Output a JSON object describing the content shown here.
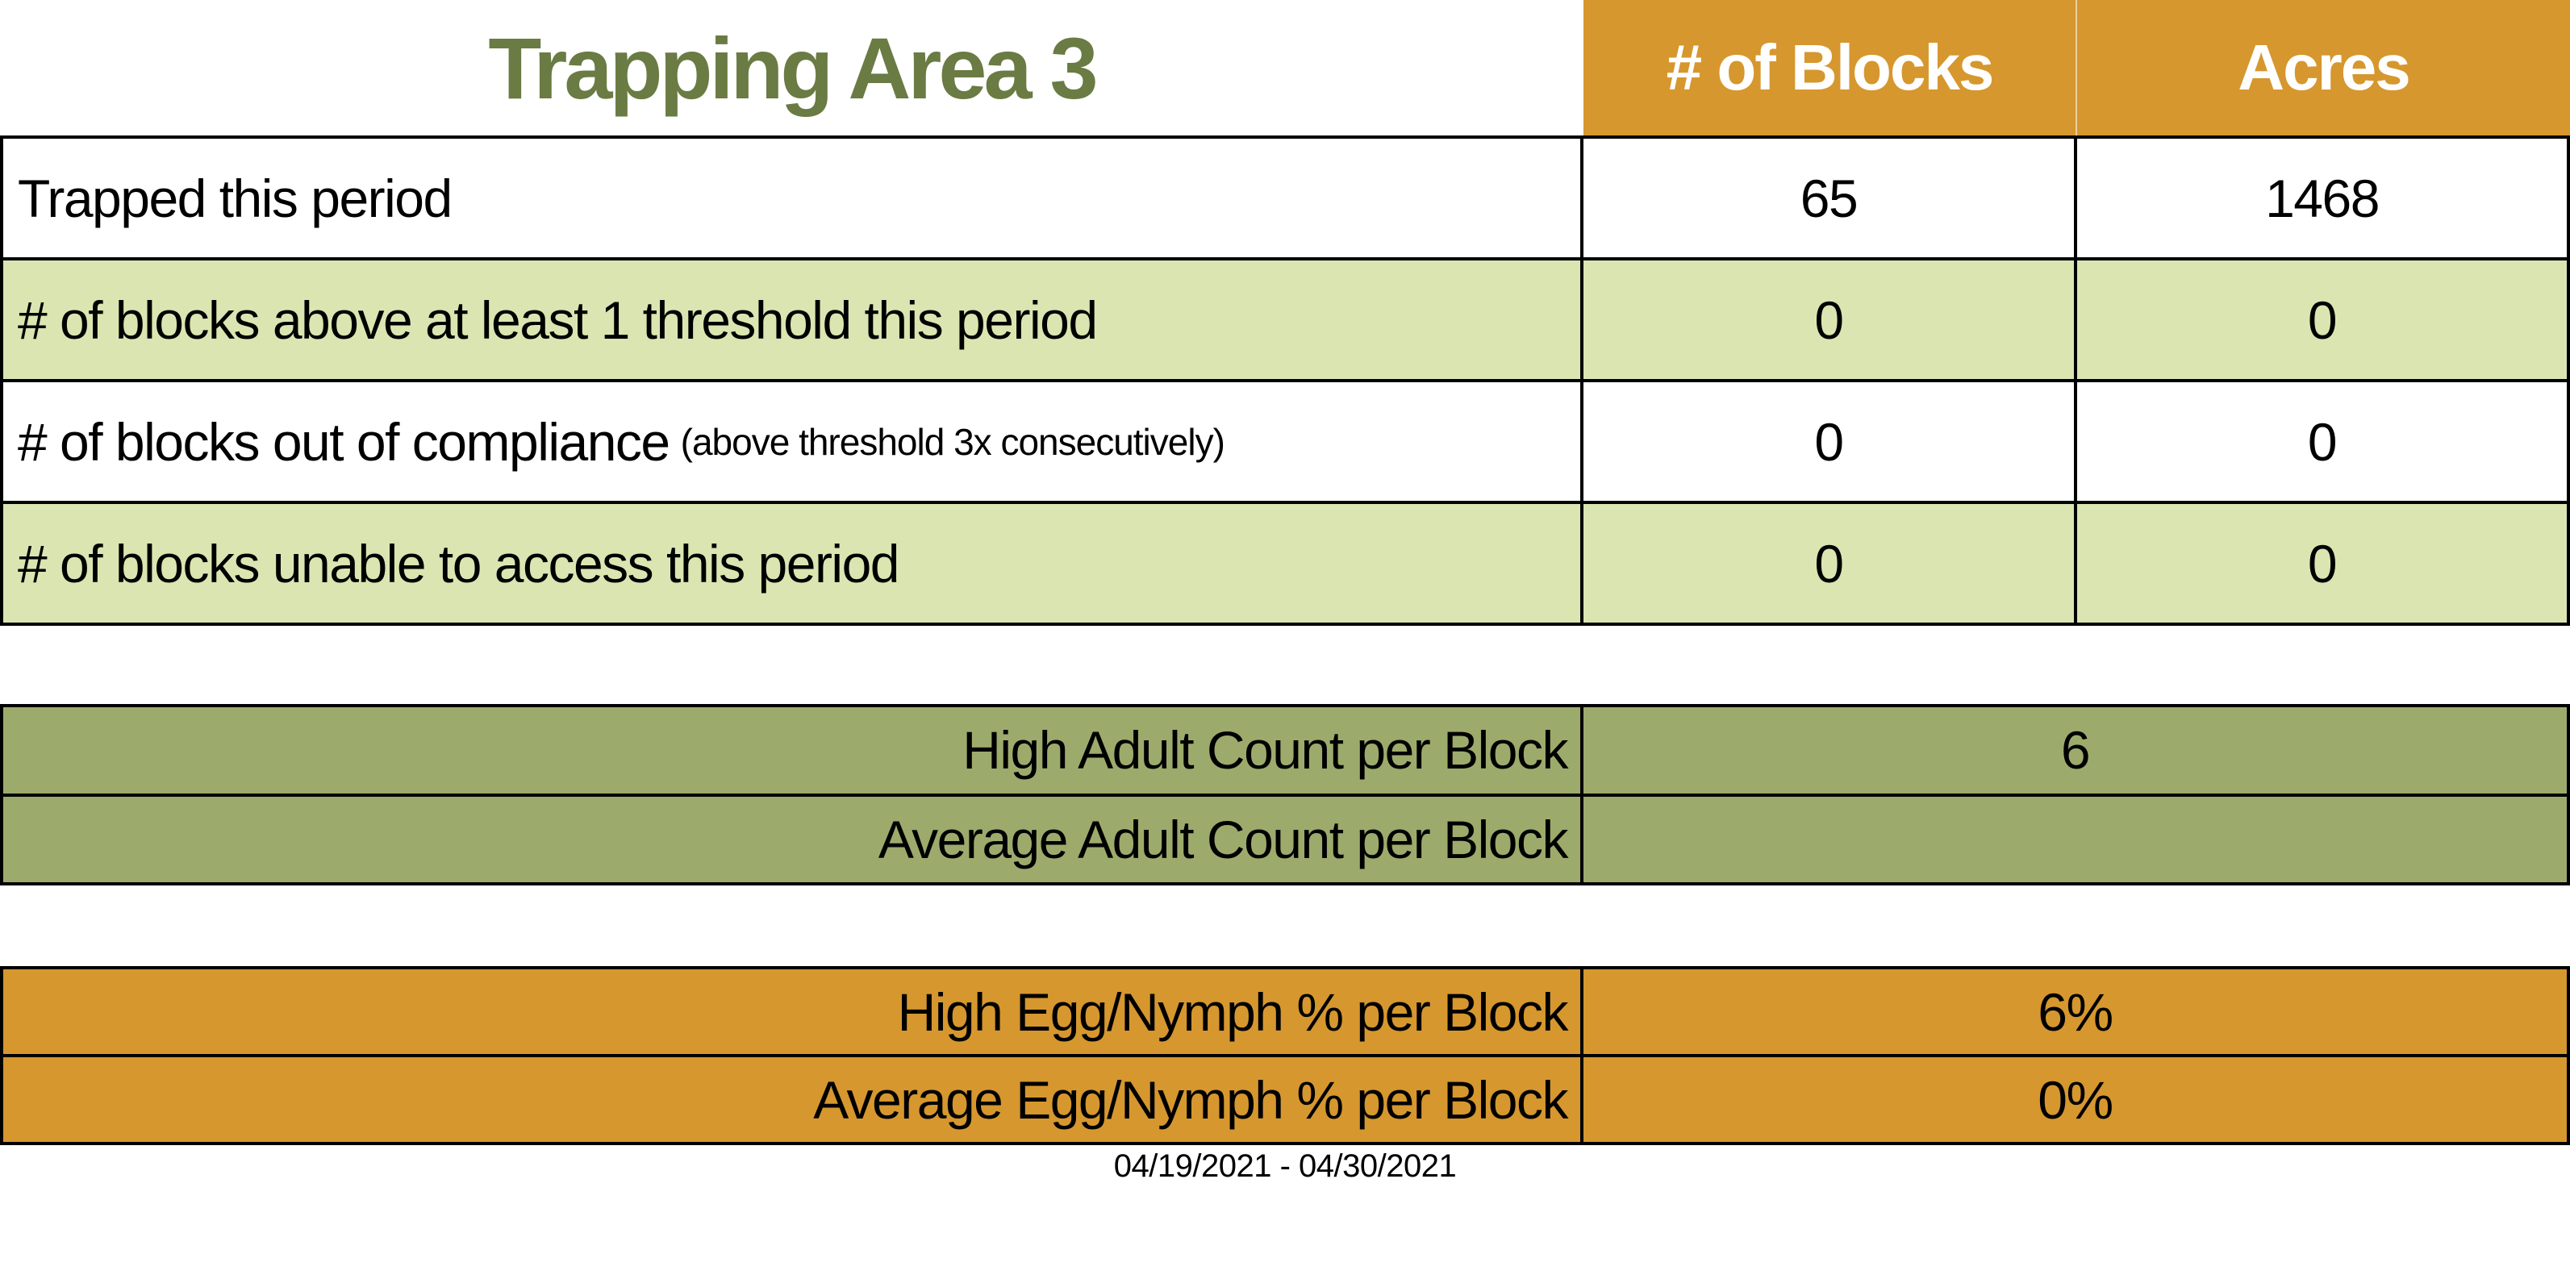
{
  "title": "Trapping Area 3",
  "columns": {
    "blocks": "# of Blocks",
    "acres": "Acres"
  },
  "main_rows": [
    {
      "label": "Trapped this period",
      "note": "",
      "blocks": "65",
      "acres": "1468"
    },
    {
      "label": "# of blocks above at least 1 threshold this period",
      "note": "",
      "blocks": "0",
      "acres": "0"
    },
    {
      "label": "# of blocks out of compliance",
      "note": "(above threshold 3x consecutively)",
      "blocks": "0",
      "acres": "0"
    },
    {
      "label": "# of blocks unable to access this period",
      "note": "",
      "blocks": "0",
      "acres": "0"
    }
  ],
  "adult_section": {
    "rows": [
      {
        "label": "High Adult Count per Block",
        "value": "6"
      },
      {
        "label": "Average Adult Count per Block",
        "value": ""
      }
    ]
  },
  "egg_section": {
    "rows": [
      {
        "label": "High Egg/Nymph % per Block",
        "value": "6%"
      },
      {
        "label": "Average Egg/Nymph % per Block",
        "value": "0%"
      }
    ]
  },
  "date_range": "04/19/2021 - 04/30/2021",
  "colors": {
    "accent_orange": "#D6972E",
    "row_light_green": "#DBE5B1",
    "section_olive": "#9CAB6B",
    "title_green": "#6A7B43",
    "header_text": "#FFFFFF",
    "body_text": "#000000",
    "grid_line": "#000000"
  }
}
